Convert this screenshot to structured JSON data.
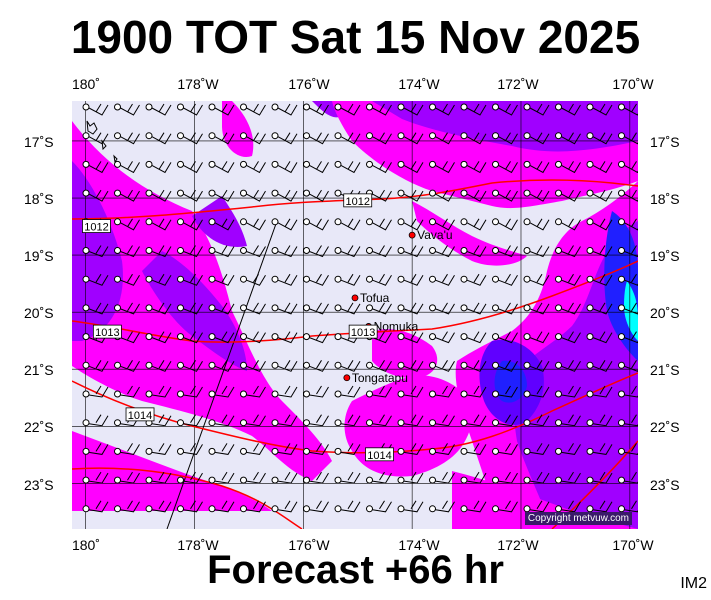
{
  "title": "1900 TOT Sat 15 Nov 2025",
  "footer": "Forecast +66 hr",
  "code": "IM2",
  "copyright": "Copyright metvuw.com",
  "lon_labels": [
    "180˚",
    "178˚W",
    "176˚W",
    "174˚W",
    "172˚W",
    "170˚W"
  ],
  "lat_labels": [
    "17˚S",
    "18˚S",
    "19˚S",
    "20˚S",
    "21˚S",
    "22˚S",
    "23˚S"
  ],
  "places": [
    {
      "name": "Vava'u",
      "lon": -174.0,
      "lat": -18.65
    },
    {
      "name": "Tofua",
      "lon": -175.05,
      "lat": -19.75
    },
    {
      "name": "Nomuka",
      "lon": -174.8,
      "lat": -20.25
    },
    {
      "name": "Tongatapu",
      "lon": -175.2,
      "lat": -21.15
    }
  ],
  "isobars": [
    {
      "label": "1012",
      "lon": -175.0,
      "lat": -18.05
    },
    {
      "label": "1012",
      "lon": -179.8,
      "lat": -18.5
    },
    {
      "label": "1013",
      "lon": -179.6,
      "lat": -20.35
    },
    {
      "label": "1013",
      "lon": -174.9,
      "lat": -20.35
    },
    {
      "label": "1014",
      "lon": -179.0,
      "lat": -21.8
    },
    {
      "label": "1014",
      "lon": -174.6,
      "lat": -22.5
    }
  ],
  "colors": {
    "background": "#e8e8f8",
    "magenta": "#ff00ff",
    "violet": "#a000ff",
    "blue": "#2020ff",
    "cyan": "#00ffff",
    "isobar": "#ff0000"
  }
}
